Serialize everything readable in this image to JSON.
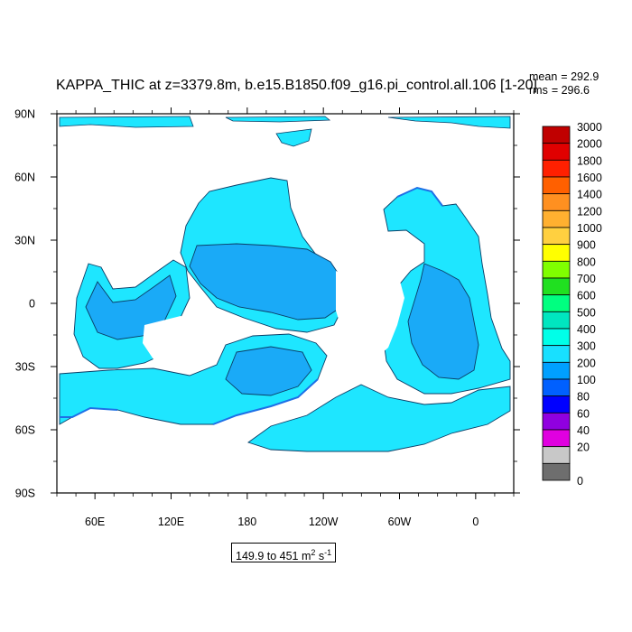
{
  "chart_data": {
    "type": "heatmap",
    "title": "KAPPA_THIC at z=3379.8m, b.e15.B1850.f09_g16.pi_control.all.106 [1-20]",
    "stats": [
      {
        "label": "mean",
        "value": "292.9"
      },
      {
        "label": "rms",
        "value": "296.6"
      }
    ],
    "range_label": {
      "text": "149.9 to 451",
      "unit": "m",
      "unit_exp": "2",
      "unit2": " s",
      "unit2_exp": "-1"
    },
    "x_ticks": [
      "60E",
      "120E",
      "180",
      "120W",
      "60W",
      "0"
    ],
    "y_ticks": [
      "90N",
      "60N",
      "30N",
      "0",
      "30S",
      "60S",
      "90S"
    ],
    "color_levels": [
      "3000",
      "2000",
      "1800",
      "1600",
      "1400",
      "1200",
      "1000",
      "900",
      "800",
      "700",
      "600",
      "500",
      "400",
      "300",
      "200",
      "100",
      "80",
      "60",
      "40",
      "20",
      "0"
    ],
    "color_fills": [
      "#c00000",
      "#e00000",
      "#ff2000",
      "#ff6000",
      "#ff9020",
      "#ffb030",
      "#ffd040",
      "#ffff00",
      "#80ff00",
      "#20e020",
      "#00ff80",
      "#00e6c0",
      "#00ffe8",
      "#18e0ff",
      "#00a0ff",
      "#0060ff",
      "#0000ff",
      "#9000e0",
      "#e000e0",
      "#c8c8c8",
      "#6e6e6e"
    ],
    "field_colors": {
      "cyan_400": "#1ee6ff",
      "blue_300": "#1aaaf7",
      "deep_200": "#1e6fe6"
    }
  }
}
